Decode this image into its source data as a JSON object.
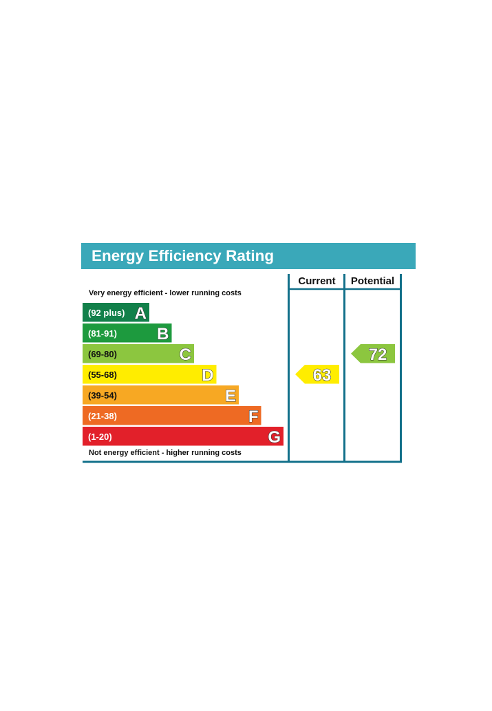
{
  "title": "Energy Efficiency Rating",
  "columns": {
    "current": "Current",
    "potential": "Potential"
  },
  "captions": {
    "top": "Very energy efficient - lower running costs",
    "bottom": "Not energy efficient - higher running costs"
  },
  "chart_data": {
    "type": "bar",
    "title": "Energy Efficiency Rating",
    "bands": [
      {
        "letter": "A",
        "range": "(92 plus)",
        "color": "#12804a",
        "min": 92,
        "max": 100
      },
      {
        "letter": "B",
        "range": "(81-91)",
        "color": "#1d9a3e",
        "min": 81,
        "max": 91
      },
      {
        "letter": "C",
        "range": "(69-80)",
        "color": "#8cc63f",
        "min": 69,
        "max": 80
      },
      {
        "letter": "D",
        "range": "(55-68)",
        "color": "#ffed00",
        "min": 55,
        "max": 68
      },
      {
        "letter": "E",
        "range": "(39-54)",
        "color": "#f7a823",
        "min": 39,
        "max": 54
      },
      {
        "letter": "F",
        "range": "(21-38)",
        "color": "#ee6a23",
        "min": 21,
        "max": 38
      },
      {
        "letter": "G",
        "range": "(1-20)",
        "color": "#e2202a",
        "min": 1,
        "max": 20
      }
    ],
    "ratings": [
      {
        "name": "Current",
        "value": 63,
        "band": "D",
        "color": "#ffed00"
      },
      {
        "name": "Potential",
        "value": 72,
        "band": "C",
        "color": "#8cc63f"
      }
    ],
    "frame_color": "#12708a"
  }
}
